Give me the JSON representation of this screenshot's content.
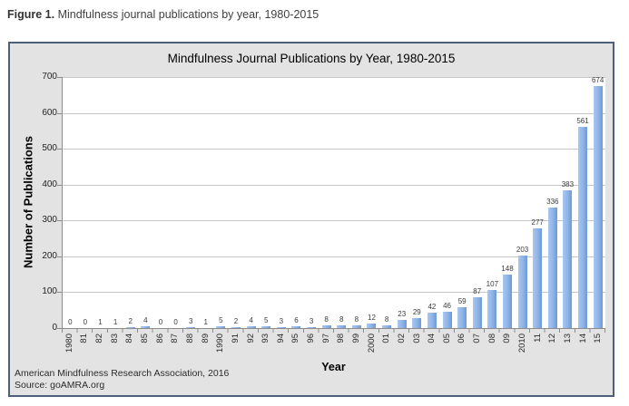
{
  "figure_caption": {
    "prefix": "Figure 1.",
    "text": " Mindfulness journal publications by year, 1980-2015"
  },
  "chart": {
    "title": "Mindfulness Journal Publications by Year, 1980-2015",
    "y_axis_label": "Number of Publications",
    "x_axis_label": "Year",
    "footer_line1": "American Mindfulness Research Association, 2016",
    "footer_line2": "Source: goAMRA.org"
  },
  "chart_data": {
    "type": "bar",
    "title": "Mindfulness Journal Publications by Year, 1980-2015",
    "xlabel": "Year",
    "ylabel": "Number of Publications",
    "categories": [
      "1980",
      "81",
      "82",
      "83",
      "84",
      "85",
      "86",
      "87",
      "88",
      "89",
      "1990",
      "91",
      "92",
      "93",
      "94",
      "95",
      "96",
      "97",
      "98",
      "99",
      "2000",
      "01",
      "02",
      "03",
      "04",
      "05",
      "06",
      "07",
      "08",
      "09",
      "2010",
      "11",
      "12",
      "13",
      "14",
      "15"
    ],
    "values": [
      0,
      0,
      1,
      1,
      2,
      4,
      0,
      0,
      3,
      1,
      5,
      2,
      4,
      5,
      3,
      6,
      3,
      8,
      8,
      8,
      12,
      8,
      23,
      29,
      42,
      46,
      59,
      87,
      107,
      148,
      203,
      277,
      336,
      383,
      561,
      674
    ],
    "ylim": [
      0,
      700
    ],
    "yticks": [
      0,
      100,
      200,
      300,
      400,
      500,
      600,
      700
    ],
    "grid": "horizontal",
    "data_labels": true,
    "legend": "none"
  },
  "colors": {
    "chart_bg": "#e3e3e3",
    "chart_border": "#4d5f7a",
    "plot_bg": "#ffffff",
    "gridline": "#c6c6c6",
    "axis": "#8c8c8c",
    "bar_light": "#aac8f1",
    "bar_mid": "#8db3e7",
    "bar_dark": "#6d9ad8"
  }
}
